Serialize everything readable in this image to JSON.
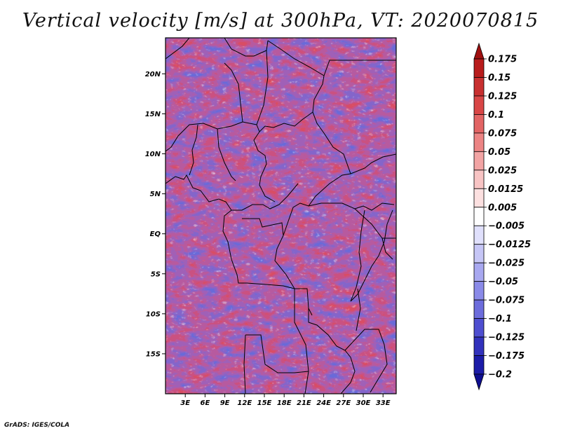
{
  "title": "Vertical velocity [m/s] at 300hPa, VT: 2020070815",
  "footer": "GrADS: IGES/COLA",
  "map": {
    "lon_range": [
      0,
      35
    ],
    "lat_range": [
      -20,
      24.5
    ],
    "lat_ticks": [
      "20N",
      "15N",
      "10N",
      "5N",
      "EQ",
      "5S",
      "10S",
      "15S"
    ],
    "lon_ticks": [
      "3E",
      "6E",
      "9E",
      "12E",
      "15E",
      "18E",
      "21E",
      "24E",
      "27E",
      "30E",
      "33E"
    ]
  },
  "colorbar": {
    "labels": [
      "0.175",
      "0.15",
      "0.125",
      "0.1",
      "0.075",
      "0.05",
      "0.025",
      "0.0125",
      "0.005",
      "-0.005",
      "-0.0125",
      "-0.025",
      "-0.05",
      "-0.075",
      "-0.1",
      "-0.125",
      "-0.175",
      "-0.2"
    ],
    "colors": [
      "#a01010",
      "#b81c1c",
      "#c83030",
      "#d84646",
      "#e26464",
      "#ec8484",
      "#f2a4a4",
      "#f8c4c4",
      "#fce0e0",
      "#ffffff",
      "#e0e0fc",
      "#c6c6f6",
      "#a8a8f0",
      "#8a8ae8",
      "#6c6cdc",
      "#4e4ed0",
      "#3232bc",
      "#1c1ca8",
      "#0e0e90"
    ]
  }
}
